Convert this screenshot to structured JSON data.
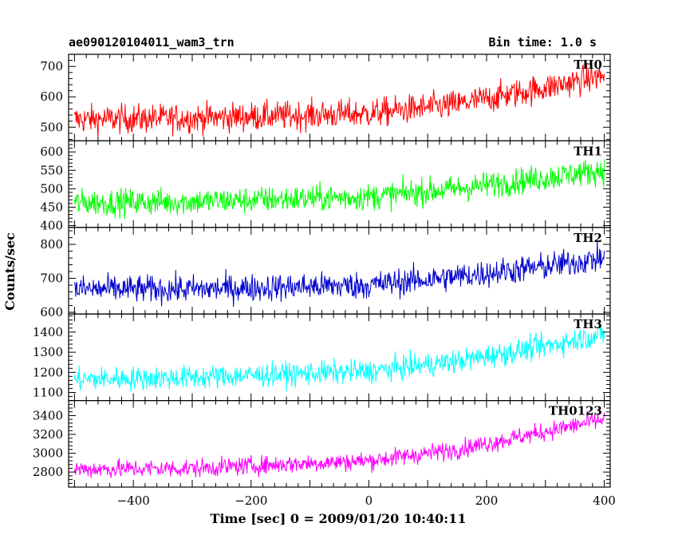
{
  "chart_data": {
    "type": "line",
    "title": "ae090120104011_wam3_trn",
    "subtitle": "Bin time: 1.0 s",
    "xlabel": "Time [sec] 0 = 2009/01/20 10:40:11",
    "ylabel": "Counts/sec",
    "xlim": [
      -510,
      410
    ],
    "x_range": [
      -500,
      400
    ],
    "xticks": [
      -400,
      -200,
      0,
      200,
      400
    ],
    "grid": false,
    "panels": [
      {
        "name": "TH0",
        "color": "#ff0000",
        "ylim": [
          455,
          740
        ],
        "yticks": [
          500,
          600,
          700
        ],
        "trend": [
          [
            -500,
            525
          ],
          [
            -300,
            530
          ],
          [
            0,
            545
          ],
          [
            150,
            575
          ],
          [
            300,
            630
          ],
          [
            400,
            670
          ]
        ],
        "noise": 34
      },
      {
        "name": "TH1",
        "color": "#00ff00",
        "ylim": [
          395,
          630
        ],
        "yticks": [
          400,
          450,
          500,
          550,
          600
        ],
        "trend": [
          [
            -500,
            462
          ],
          [
            -300,
            465
          ],
          [
            0,
            478
          ],
          [
            150,
            500
          ],
          [
            300,
            530
          ],
          [
            400,
            550
          ]
        ],
        "noise": 26
      },
      {
        "name": "TH2",
        "color": "#0000cc",
        "ylim": [
          595,
          850
        ],
        "yticks": [
          600,
          700,
          800
        ],
        "trend": [
          [
            -500,
            668
          ],
          [
            -300,
            668
          ],
          [
            0,
            680
          ],
          [
            150,
            705
          ],
          [
            300,
            735
          ],
          [
            400,
            760
          ]
        ],
        "noise": 29
      },
      {
        "name": "TH3",
        "color": "#00ffff",
        "ylim": [
          1060,
          1490
        ],
        "yticks": [
          1100,
          1200,
          1300,
          1400
        ],
        "trend": [
          [
            -500,
            1165
          ],
          [
            -300,
            1175
          ],
          [
            0,
            1205
          ],
          [
            150,
            1255
          ],
          [
            300,
            1330
          ],
          [
            400,
            1390
          ]
        ],
        "noise": 42
      },
      {
        "name": "TH0123",
        "color": "#ff00ff",
        "ylim": [
          2640,
          3560
        ],
        "yticks": [
          2800,
          3000,
          3200,
          3400
        ],
        "trend": [
          [
            -500,
            2830
          ],
          [
            -300,
            2840
          ],
          [
            0,
            2920
          ],
          [
            150,
            3040
          ],
          [
            300,
            3230
          ],
          [
            400,
            3360
          ]
        ],
        "noise": 70
      }
    ]
  }
}
